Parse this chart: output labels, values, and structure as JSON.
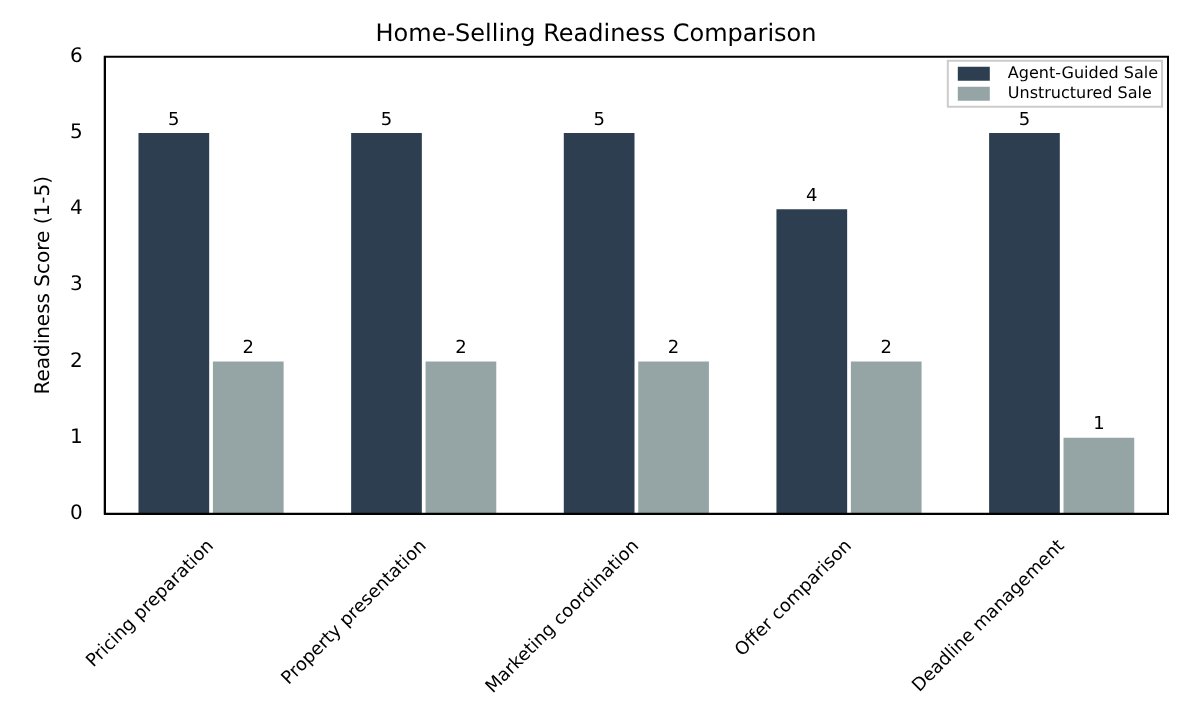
{
  "chart_data": {
    "type": "bar",
    "title": "Home-Selling Readiness Comparison",
    "ylabel": "Readiness Score (1-5)",
    "categories": [
      "Pricing preparation",
      "Property presentation",
      "Marketing coordination",
      "Offer comparison",
      "Deadline management"
    ],
    "series": [
      {
        "name": "Agent-Guided Sale",
        "color": "#2c3e50",
        "values": [
          5,
          5,
          5,
          4,
          5
        ]
      },
      {
        "name": "Unstructured Sale",
        "color": "#95a5a6",
        "values": [
          2,
          2,
          2,
          2,
          1
        ]
      }
    ],
    "ylim": [
      0,
      6
    ],
    "yticks": [
      0,
      1,
      2,
      3,
      4,
      5,
      6
    ],
    "grid": false,
    "legend": "top right",
    "data_labels": true
  }
}
